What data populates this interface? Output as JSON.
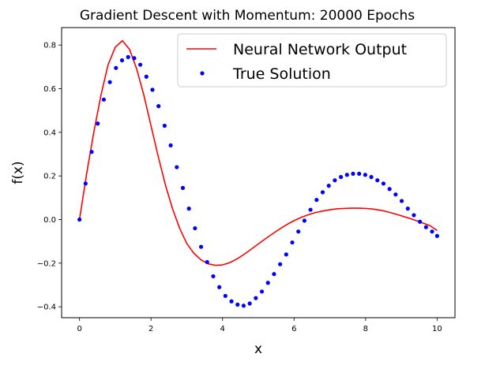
{
  "chart_data": {
    "type": "line",
    "title": "Gradient Descent with Momentum: 20000 Epochs",
    "xlabel": "x",
    "ylabel": "f(x)",
    "xlim": [
      -0.5,
      10.5
    ],
    "ylim": [
      -0.45,
      0.88
    ],
    "xticks": [
      0,
      2,
      4,
      6,
      8,
      10
    ],
    "yticks": [
      -0.4,
      -0.2,
      0.0,
      0.2,
      0.4,
      0.6,
      0.8
    ],
    "xtick_labels": [
      "0",
      "2",
      "4",
      "6",
      "8",
      "10"
    ],
    "ytick_labels": [
      "−0.4",
      "−0.2",
      "0.0",
      "0.2",
      "0.4",
      "0.6",
      "0.8"
    ],
    "grid": false,
    "legend_position": "top-right",
    "series": [
      {
        "name": "Neural Network Output",
        "style": "line",
        "color": "#ff0000",
        "x": [
          0.0,
          0.2,
          0.4,
          0.6,
          0.8,
          1.0,
          1.2,
          1.4,
          1.6,
          1.8,
          2.0,
          2.2,
          2.4,
          2.6,
          2.8,
          3.0,
          3.2,
          3.4,
          3.6,
          3.8,
          4.0,
          4.2,
          4.4,
          4.6,
          4.8,
          5.0,
          5.2,
          5.4,
          5.6,
          5.8,
          6.0,
          6.2,
          6.4,
          6.6,
          6.8,
          7.0,
          7.2,
          7.4,
          7.6,
          7.8,
          8.0,
          8.2,
          8.4,
          8.6,
          8.8,
          9.0,
          9.2,
          9.4,
          9.6,
          9.8,
          10.0
        ],
        "y": [
          0.0,
          0.21,
          0.4,
          0.57,
          0.71,
          0.79,
          0.82,
          0.78,
          0.69,
          0.57,
          0.43,
          0.29,
          0.16,
          0.05,
          -0.04,
          -0.11,
          -0.155,
          -0.185,
          -0.203,
          -0.21,
          -0.208,
          -0.198,
          -0.181,
          -0.16,
          -0.136,
          -0.112,
          -0.088,
          -0.065,
          -0.043,
          -0.023,
          -0.005,
          0.01,
          0.022,
          0.032,
          0.039,
          0.045,
          0.049,
          0.051,
          0.052,
          0.052,
          0.051,
          0.048,
          0.043,
          0.036,
          0.027,
          0.017,
          0.007,
          -0.004,
          -0.016,
          -0.028,
          -0.05
        ]
      },
      {
        "name": "True Solution",
        "style": "markers",
        "color": "#0000ff",
        "x": [
          0.0,
          0.17,
          0.34,
          0.51,
          0.68,
          0.85,
          1.02,
          1.19,
          1.36,
          1.53,
          1.7,
          1.87,
          2.04,
          2.21,
          2.38,
          2.55,
          2.72,
          2.89,
          3.06,
          3.23,
          3.4,
          3.57,
          3.74,
          3.91,
          4.08,
          4.25,
          4.42,
          4.59,
          4.76,
          4.93,
          5.1,
          5.27,
          5.44,
          5.61,
          5.78,
          5.95,
          6.12,
          6.29,
          6.46,
          6.63,
          6.8,
          6.97,
          7.14,
          7.31,
          7.48,
          7.65,
          7.82,
          7.99,
          8.16,
          8.33,
          8.5,
          8.67,
          8.84,
          9.01,
          9.18,
          9.35,
          9.52,
          9.69,
          9.86,
          10.0
        ],
        "y": [
          0.0,
          0.165,
          0.31,
          0.44,
          0.55,
          0.63,
          0.695,
          0.73,
          0.745,
          0.74,
          0.71,
          0.655,
          0.595,
          0.52,
          0.43,
          0.34,
          0.24,
          0.145,
          0.05,
          -0.04,
          -0.125,
          -0.195,
          -0.26,
          -0.31,
          -0.35,
          -0.375,
          -0.39,
          -0.395,
          -0.385,
          -0.36,
          -0.33,
          -0.29,
          -0.25,
          -0.205,
          -0.16,
          -0.105,
          -0.055,
          -0.005,
          0.045,
          0.09,
          0.125,
          0.155,
          0.18,
          0.195,
          0.205,
          0.21,
          0.21,
          0.205,
          0.195,
          0.18,
          0.165,
          0.14,
          0.115,
          0.085,
          0.05,
          0.02,
          -0.01,
          -0.035,
          -0.055,
          -0.075
        ]
      }
    ]
  }
}
